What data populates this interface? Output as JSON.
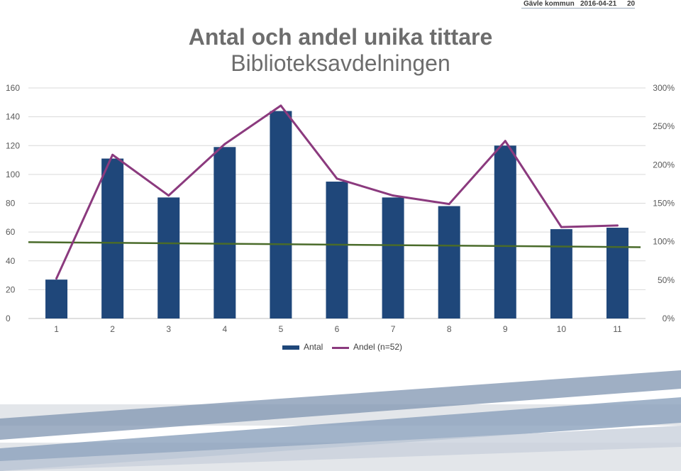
{
  "header": {
    "org": "Gävle kommun",
    "date": "2016-04-21",
    "page": "20"
  },
  "colors": {
    "bar": "#1f477a",
    "line": "#8b3a7e",
    "trend": "#4a6b2a",
    "grid": "#d9d9d9"
  },
  "chart_data": {
    "type": "bar",
    "title": "Antal och andel unika tittare",
    "subtitle": "Biblioteksavdelningen",
    "categories": [
      "1",
      "2",
      "3",
      "4",
      "5",
      "6",
      "7",
      "8",
      "9",
      "10",
      "11"
    ],
    "series": [
      {
        "name": "Antal",
        "type": "bar",
        "axis": "left",
        "values": [
          27,
          111,
          84,
          119,
          144,
          95,
          84,
          78,
          120,
          62,
          63
        ]
      },
      {
        "name": "Andel (n=52)",
        "type": "line",
        "axis": "right",
        "values": [
          52,
          213,
          160,
          227,
          277,
          182,
          160,
          149,
          231,
          119,
          121
        ]
      }
    ],
    "trendline": {
      "type": "linear",
      "axis": "left",
      "start": 53,
      "end": 49.5
    },
    "y_left": {
      "min": 0,
      "max": 160,
      "step": 20,
      "ticks": [
        "0",
        "20",
        "40",
        "60",
        "80",
        "100",
        "120",
        "140",
        "160"
      ]
    },
    "y_right": {
      "min": 0,
      "max": 300,
      "step": 50,
      "ticks": [
        "0%",
        "50%",
        "100%",
        "150%",
        "200%",
        "250%",
        "300%"
      ]
    },
    "grid": true,
    "legend_position": "bottom"
  }
}
